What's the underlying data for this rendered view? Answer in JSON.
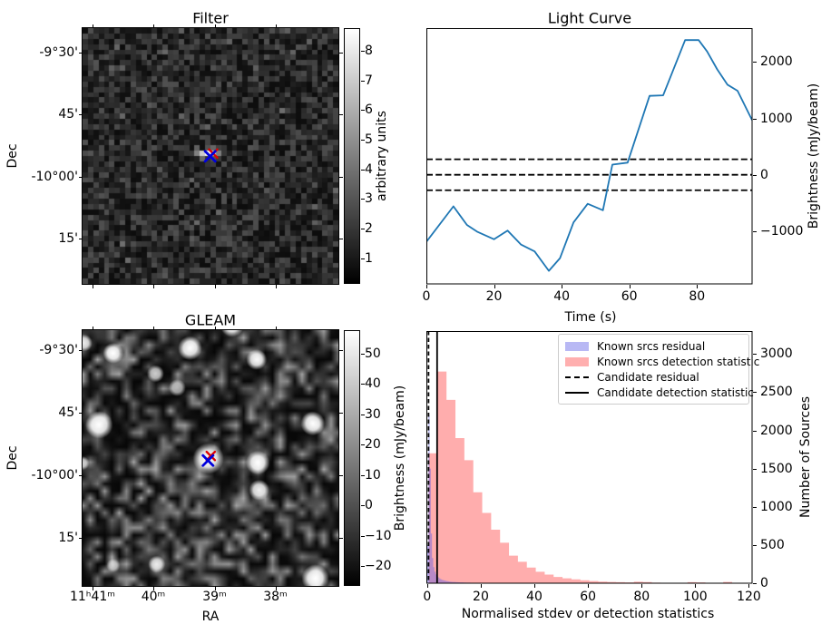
{
  "figure": {
    "background": "#ffffff"
  },
  "chart_data": [
    {
      "id": "filter_map",
      "type": "heatmap",
      "title": "Filter",
      "xlabel": "",
      "ylabel": "Dec",
      "ytick_labels": [
        "-9°30'",
        "45'",
        "-10°00'",
        "15'"
      ],
      "colorbar": {
        "label": "arbitrary units",
        "ticks": [
          8,
          7,
          6,
          5,
          4,
          3,
          2,
          1
        ],
        "tick_labels": [
          "8",
          "7",
          "6",
          "5",
          "4",
          "3",
          "2",
          "1"
        ],
        "range": [
          0.13,
          8.77
        ]
      },
      "description": "dark pixelated gaussian noise map with one compact bright source at centre",
      "markers": [
        {
          "name": "known-source-x",
          "shape": "x",
          "color": "#e00000",
          "fx": 0.5106,
          "fy": 0.4904
        },
        {
          "name": "candidate-x",
          "shape": "x",
          "color": "#0000dd",
          "fx": 0.4989,
          "fy": 0.5011
        }
      ]
    },
    {
      "id": "light_curve",
      "type": "line",
      "title": "Light Curve",
      "xlabel": "Time (s)",
      "ylabel": "Brightness (mJy/beam)",
      "line_color": "#1f77b4",
      "x": [
        0,
        8,
        12,
        15,
        20,
        24,
        28,
        32,
        36.2,
        39.5,
        43.5,
        47.7,
        52.2,
        55,
        59.5,
        66,
        70,
        76.5,
        80.5,
        83,
        86,
        89,
        92,
        96.3
      ],
      "y": [
        -1190,
        -560,
        -890,
        -1010,
        -1145,
        -990,
        -1240,
        -1360,
        -1705,
        -1480,
        -845,
        -515,
        -630,
        180,
        215,
        1400,
        1410,
        2390,
        2390,
        2190,
        1870,
        1600,
        1490,
        970
      ],
      "xlim": [
        0,
        96.3
      ],
      "ylim": [
        -1937,
        2603
      ],
      "xticks": [
        0,
        20,
        40,
        60,
        80
      ],
      "xtick_labels": [
        "0",
        "20",
        "40",
        "60",
        "80"
      ],
      "yticks": [
        2000,
        1000,
        0,
        -1000
      ],
      "ytick_labels": [
        "2000",
        "1000",
        "0",
        "−1000"
      ],
      "hlines": [
        275,
        0,
        -275
      ],
      "grid": false
    },
    {
      "id": "gleam_map",
      "type": "heatmap",
      "title": "GLEAM",
      "xlabel": "RA",
      "ylabel": "Dec",
      "xtick_labels": [
        "11ʰ41ᵐ",
        "40ᵐ",
        "39ᵐ",
        "38ᵐ"
      ],
      "ytick_labels": [
        "-9°30'",
        "45'",
        "-10°00'",
        "15'"
      ],
      "colorbar": {
        "label": "Brightness (mJy/beam)",
        "ticks": [
          50,
          40,
          30,
          20,
          10,
          0,
          -10,
          -20
        ],
        "tick_labels": [
          "50",
          "40",
          "30",
          "20",
          "10",
          "0",
          "−10",
          "−20"
        ],
        "range": [
          -26.5,
          57.7
        ]
      },
      "description": "smooth confusion-noise radio map with several bright point sources, brightest at centre",
      "sources_f": [
        [
          0.12,
          0.09,
          6,
          1
        ],
        [
          0.42,
          0.07,
          7,
          1
        ],
        [
          0.285,
          0.17,
          5,
          0.8
        ],
        [
          0.37,
          0.225,
          5,
          0.7
        ],
        [
          0.585,
          -0.02,
          7,
          1
        ],
        [
          0.68,
          0.115,
          6,
          0.95
        ],
        [
          0.065,
          0.37,
          8,
          1
        ],
        [
          0.9,
          0.365,
          7,
          1
        ],
        [
          0.685,
          0.518,
          7,
          1
        ],
        [
          0.69,
          0.625,
          6,
          0.95
        ],
        [
          0.005,
          0.05,
          5,
          0.9
        ],
        [
          0.29,
          0.915,
          5,
          0.85
        ],
        [
          0.91,
          0.97,
          8,
          1
        ],
        [
          0.0,
          0.52,
          4,
          0.8
        ],
        [
          0.12,
          0.92,
          4,
          0.6
        ],
        [
          0.492,
          0.502,
          9,
          1
        ]
      ],
      "markers": [
        {
          "name": "known-source-x",
          "shape": "x",
          "color": "#e00000",
          "fx": 0.5011,
          "fy": 0.4918
        },
        {
          "name": "candidate-x",
          "shape": "x",
          "color": "#0000dd",
          "fx": 0.4904,
          "fy": 0.5096
        }
      ]
    },
    {
      "id": "stats_histogram",
      "type": "bar",
      "title": "",
      "xlabel": "Normalised stdev or detection statistics",
      "ylabel": "Number of Sources",
      "xlim": [
        -0.3,
        121.2
      ],
      "ylim": [
        0,
        3300
      ],
      "xticks": [
        0,
        20,
        40,
        60,
        80,
        100,
        120
      ],
      "xtick_labels": [
        "0",
        "20",
        "40",
        "60",
        "80",
        "100",
        "120"
      ],
      "yticks": [
        0,
        500,
        1000,
        1500,
        2000,
        2500,
        3000
      ],
      "ytick_labels": [
        "0",
        "500",
        "1000",
        "1500",
        "2000",
        "2500",
        "3000"
      ],
      "series": [
        {
          "name": "Known srcs detection statistic",
          "fill": "rgba(255,80,80,0.47)",
          "legend_color": "#ffafaf",
          "bin_start": 0.55,
          "bin_width": 3.33,
          "counts": [
            1700,
            2770,
            2400,
            1900,
            1610,
            1190,
            920,
            700,
            530,
            360,
            280,
            205,
            150,
            112,
            82,
            64,
            50,
            38,
            28,
            21,
            16,
            13,
            10,
            20,
            15,
            8,
            5,
            4,
            4,
            14,
            10,
            5,
            4,
            17,
            5
          ]
        },
        {
          "name": "Known srcs residual",
          "fill": "rgba(85,85,230,0.42)",
          "legend_color": "#b8b8f4",
          "bin_start": 0.0,
          "bin_width": 0.45,
          "counts": [
            500,
            2200,
            1500,
            650,
            330,
            210,
            150,
            115,
            90,
            75,
            62,
            52,
            45,
            40,
            35,
            31,
            28,
            25,
            22,
            20,
            18,
            17,
            16,
            15,
            14,
            13,
            12,
            11,
            10,
            10,
            9,
            9,
            8,
            8,
            7,
            7,
            6,
            6,
            5,
            5,
            5,
            4,
            4,
            4,
            3
          ]
        }
      ],
      "vlines": [
        {
          "name": "Candidate residual",
          "x": 0.5,
          "style": "dashed",
          "color": "#000000"
        },
        {
          "name": "Candidate detection statistic",
          "x": 3.7,
          "style": "solid",
          "color": "#000000"
        }
      ],
      "legend": {
        "position": "upper right",
        "items": [
          "Known srcs residual",
          "Known srcs detection statistic",
          "Candidate residual",
          "Candidate detection statistic"
        ]
      }
    }
  ]
}
